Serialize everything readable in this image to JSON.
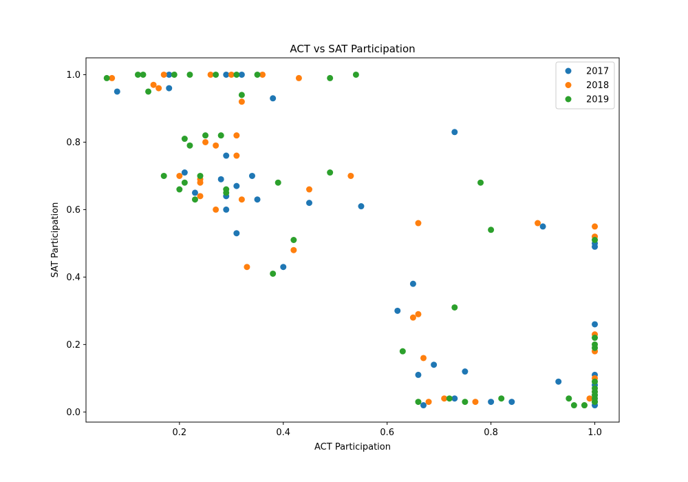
{
  "chart_data": {
    "type": "scatter",
    "title": "ACT vs SAT Participation",
    "xlabel": "ACT Participation",
    "ylabel": "SAT Participation",
    "xlim": [
      0.02,
      1.047
    ],
    "ylim": [
      -0.03,
      1.05
    ],
    "xticks": [
      {
        "value": 0.2,
        "label": "0.2"
      },
      {
        "value": 0.4,
        "label": "0.4"
      },
      {
        "value": 0.6,
        "label": "0.6"
      },
      {
        "value": 0.8,
        "label": "0.8"
      },
      {
        "value": 1.0,
        "label": "1.0"
      }
    ],
    "yticks": [
      {
        "value": 0.0,
        "label": "0.0"
      },
      {
        "value": 0.2,
        "label": "0.2"
      },
      {
        "value": 0.4,
        "label": "0.4"
      },
      {
        "value": 0.6,
        "label": "0.6"
      },
      {
        "value": 0.8,
        "label": "0.8"
      },
      {
        "value": 1.0,
        "label": "1.0"
      }
    ],
    "grid": false,
    "legend": "top-right",
    "series": [
      {
        "name": "2017",
        "color": "#1f77b4",
        "points": [
          [
            0.08,
            0.95
          ],
          [
            0.18,
            1.0
          ],
          [
            0.18,
            0.96
          ],
          [
            0.29,
            1.0
          ],
          [
            0.32,
            1.0
          ],
          [
            0.38,
            0.93
          ],
          [
            0.21,
            0.71
          ],
          [
            0.29,
            0.76
          ],
          [
            0.28,
            0.69
          ],
          [
            0.34,
            0.7
          ],
          [
            0.31,
            0.67
          ],
          [
            0.23,
            0.65
          ],
          [
            0.29,
            0.64
          ],
          [
            0.35,
            0.63
          ],
          [
            0.29,
            0.6
          ],
          [
            0.45,
            0.62
          ],
          [
            0.55,
            0.61
          ],
          [
            0.31,
            0.53
          ],
          [
            0.4,
            0.43
          ],
          [
            0.73,
            0.83
          ],
          [
            0.9,
            0.55
          ],
          [
            1.0,
            0.5
          ],
          [
            1.0,
            0.49
          ],
          [
            0.65,
            0.38
          ],
          [
            0.62,
            0.3
          ],
          [
            1.0,
            0.26
          ],
          [
            0.75,
            0.12
          ],
          [
            0.69,
            0.14
          ],
          [
            0.66,
            0.11
          ],
          [
            1.0,
            0.11
          ],
          [
            0.93,
            0.09
          ],
          [
            0.73,
            0.04
          ],
          [
            0.67,
            0.02
          ],
          [
            0.8,
            0.03
          ],
          [
            0.84,
            0.03
          ],
          [
            1.0,
            0.03
          ],
          [
            1.0,
            0.02
          ],
          [
            1.0,
            0.05
          ],
          [
            1.0,
            0.08
          ]
        ]
      },
      {
        "name": "2018",
        "color": "#ff7f0e",
        "points": [
          [
            0.07,
            0.99
          ],
          [
            0.17,
            1.0
          ],
          [
            0.26,
            1.0
          ],
          [
            0.3,
            1.0
          ],
          [
            0.36,
            1.0
          ],
          [
            0.43,
            0.99
          ],
          [
            0.15,
            0.97
          ],
          [
            0.16,
            0.96
          ],
          [
            0.32,
            0.92
          ],
          [
            0.31,
            0.82
          ],
          [
            0.25,
            0.8
          ],
          [
            0.27,
            0.79
          ],
          [
            0.31,
            0.76
          ],
          [
            0.2,
            0.7
          ],
          [
            0.24,
            0.69
          ],
          [
            0.24,
            0.68
          ],
          [
            0.53,
            0.7
          ],
          [
            0.45,
            0.66
          ],
          [
            0.24,
            0.64
          ],
          [
            0.32,
            0.63
          ],
          [
            0.27,
            0.6
          ],
          [
            0.42,
            0.48
          ],
          [
            0.33,
            0.43
          ],
          [
            0.66,
            0.56
          ],
          [
            0.89,
            0.56
          ],
          [
            1.0,
            0.55
          ],
          [
            1.0,
            0.52
          ],
          [
            0.66,
            0.29
          ],
          [
            0.65,
            0.28
          ],
          [
            1.0,
            0.23
          ],
          [
            1.0,
            0.18
          ],
          [
            0.67,
            0.16
          ],
          [
            1.0,
            0.1
          ],
          [
            0.71,
            0.04
          ],
          [
            0.68,
            0.03
          ],
          [
            0.77,
            0.03
          ],
          [
            0.98,
            0.02
          ],
          [
            0.99,
            0.04
          ],
          [
            1.0,
            0.06
          ]
        ]
      },
      {
        "name": "2019",
        "color": "#2ca02c",
        "points": [
          [
            0.06,
            0.99
          ],
          [
            0.12,
            1.0
          ],
          [
            0.13,
            1.0
          ],
          [
            0.19,
            1.0
          ],
          [
            0.22,
            1.0
          ],
          [
            0.27,
            1.0
          ],
          [
            0.31,
            1.0
          ],
          [
            0.35,
            1.0
          ],
          [
            0.49,
            0.99
          ],
          [
            0.54,
            1.0
          ],
          [
            0.14,
            0.95
          ],
          [
            0.32,
            0.94
          ],
          [
            0.25,
            0.82
          ],
          [
            0.28,
            0.82
          ],
          [
            0.21,
            0.81
          ],
          [
            0.22,
            0.79
          ],
          [
            0.17,
            0.7
          ],
          [
            0.24,
            0.7
          ],
          [
            0.49,
            0.71
          ],
          [
            0.21,
            0.68
          ],
          [
            0.39,
            0.68
          ],
          [
            0.2,
            0.66
          ],
          [
            0.29,
            0.66
          ],
          [
            0.29,
            0.65
          ],
          [
            0.23,
            0.63
          ],
          [
            0.42,
            0.51
          ],
          [
            0.38,
            0.41
          ],
          [
            0.78,
            0.68
          ],
          [
            0.8,
            0.54
          ],
          [
            1.0,
            0.51
          ],
          [
            0.73,
            0.31
          ],
          [
            1.0,
            0.22
          ],
          [
            1.0,
            0.2
          ],
          [
            1.0,
            0.19
          ],
          [
            0.63,
            0.18
          ],
          [
            1.0,
            0.09
          ],
          [
            1.0,
            0.07
          ],
          [
            1.0,
            0.06
          ],
          [
            1.0,
            0.05
          ],
          [
            1.0,
            0.04
          ],
          [
            1.0,
            0.03
          ],
          [
            0.66,
            0.03
          ],
          [
            0.72,
            0.04
          ],
          [
            0.75,
            0.03
          ],
          [
            0.82,
            0.04
          ],
          [
            0.95,
            0.04
          ],
          [
            0.96,
            0.02
          ],
          [
            0.98,
            0.02
          ]
        ]
      }
    ]
  }
}
